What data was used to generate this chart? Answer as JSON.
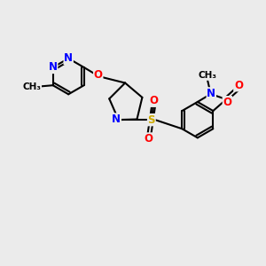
{
  "background_color": "#ebebeb",
  "atom_colors": {
    "N": "#0000ff",
    "O": "#ff0000",
    "S": "#ccaa00",
    "C": "#000000"
  },
  "bond_color": "#000000",
  "bond_width": 1.5,
  "font_size_atom": 8.5,
  "font_size_small": 7.5
}
